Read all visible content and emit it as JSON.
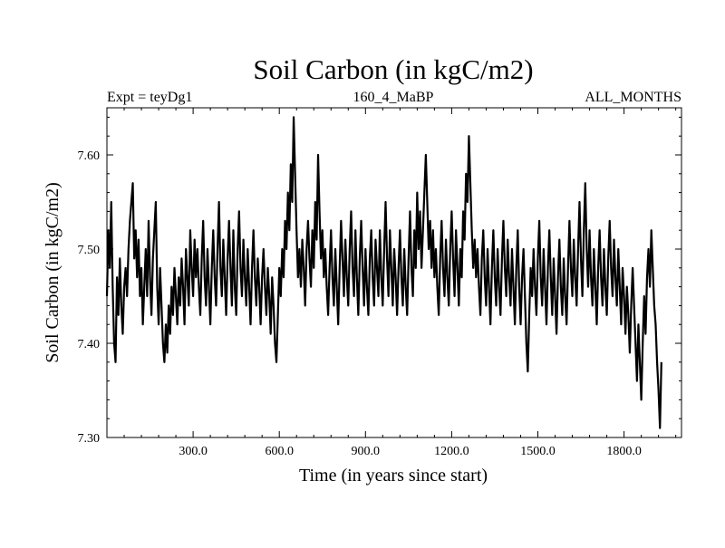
{
  "chart_data": {
    "type": "line",
    "title": "Soil Carbon (in kgC/m2)",
    "subtitle_left": "Expt = teyDg1",
    "subtitle_center": "160_4_MaBP",
    "subtitle_right": "ALL_MONTHS",
    "xlabel": "Time (in years since start)",
    "ylabel": "Soil Carbon (in kgC/m2)",
    "xlim": [
      0,
      2000
    ],
    "ylim": [
      7.3,
      7.65
    ],
    "x_ticks": [
      300,
      600,
      900,
      1200,
      1500,
      1800
    ],
    "x_tick_labels": [
      "300.0",
      "600.0",
      "900.0",
      "1200.0",
      "1500.0",
      "1800.0"
    ],
    "y_ticks": [
      7.3,
      7.4,
      7.5,
      7.6
    ],
    "y_tick_labels": [
      "7.30",
      "7.40",
      "7.50",
      "7.60"
    ],
    "series": [
      {
        "name": "Soil Carbon",
        "sampling": "one value every 5 years, 0-2000",
        "x_start": 0,
        "x_step": 5,
        "color": "#000000",
        "values": [
          7.45,
          7.52,
          7.48,
          7.55,
          7.46,
          7.4,
          7.38,
          7.47,
          7.43,
          7.49,
          7.44,
          7.41,
          7.46,
          7.48,
          7.45,
          7.5,
          7.53,
          7.55,
          7.57,
          7.49,
          7.52,
          7.47,
          7.51,
          7.45,
          7.48,
          7.42,
          7.46,
          7.5,
          7.45,
          7.53,
          7.47,
          7.43,
          7.49,
          7.52,
          7.55,
          7.46,
          7.42,
          7.48,
          7.44,
          7.4,
          7.38,
          7.42,
          7.39,
          7.44,
          7.41,
          7.46,
          7.43,
          7.48,
          7.45,
          7.42,
          7.47,
          7.44,
          7.49,
          7.46,
          7.42,
          7.5,
          7.47,
          7.44,
          7.52,
          7.48,
          7.45,
          7.51,
          7.47,
          7.5,
          7.46,
          7.43,
          7.49,
          7.53,
          7.47,
          7.44,
          7.5,
          7.46,
          7.42,
          7.48,
          7.52,
          7.47,
          7.44,
          7.5,
          7.55,
          7.48,
          7.45,
          7.51,
          7.47,
          7.43,
          7.49,
          7.53,
          7.48,
          7.44,
          7.52,
          7.46,
          7.43,
          7.5,
          7.54,
          7.48,
          7.45,
          7.51,
          7.47,
          7.44,
          7.5,
          7.46,
          7.42,
          7.48,
          7.52,
          7.47,
          7.44,
          7.49,
          7.46,
          7.42,
          7.47,
          7.5,
          7.46,
          7.43,
          7.48,
          7.45,
          7.41,
          7.47,
          7.44,
          7.4,
          7.38,
          7.43,
          7.48,
          7.45,
          7.5,
          7.47,
          7.53,
          7.5,
          7.56,
          7.52,
          7.59,
          7.55,
          7.64,
          7.58,
          7.52,
          7.47,
          7.5,
          7.46,
          7.51,
          7.48,
          7.44,
          7.5,
          7.53,
          7.49,
          7.46,
          7.52,
          7.48,
          7.55,
          7.51,
          7.6,
          7.54,
          7.49,
          7.52,
          7.47,
          7.5,
          7.46,
          7.43,
          7.48,
          7.52,
          7.47,
          7.44,
          7.5,
          7.46,
          7.42,
          7.48,
          7.53,
          7.49,
          7.45,
          7.51,
          7.47,
          7.44,
          7.5,
          7.54,
          7.48,
          7.45,
          7.52,
          7.47,
          7.43,
          7.49,
          7.53,
          7.48,
          7.44,
          7.5,
          7.46,
          7.43,
          7.49,
          7.52,
          7.47,
          7.44,
          7.51,
          7.48,
          7.45,
          7.52,
          7.47,
          7.44,
          7.5,
          7.55,
          7.49,
          7.45,
          7.52,
          7.48,
          7.44,
          7.5,
          7.47,
          7.43,
          7.48,
          7.52,
          7.47,
          7.44,
          7.5,
          7.46,
          7.43,
          7.49,
          7.54,
          7.48,
          7.45,
          7.52,
          7.48,
          7.56,
          7.5,
          7.54,
          7.48,
          7.52,
          7.56,
          7.6,
          7.55,
          7.5,
          7.53,
          7.48,
          7.52,
          7.47,
          7.5,
          7.46,
          7.43,
          7.49,
          7.53,
          7.48,
          7.45,
          7.51,
          7.47,
          7.44,
          7.5,
          7.54,
          7.49,
          7.45,
          7.52,
          7.48,
          7.44,
          7.5,
          7.47,
          7.54,
          7.51,
          7.58,
          7.55,
          7.62,
          7.57,
          7.52,
          7.48,
          7.51,
          7.47,
          7.5,
          7.46,
          7.43,
          7.49,
          7.52,
          7.47,
          7.44,
          7.5,
          7.46,
          7.42,
          7.48,
          7.52,
          7.47,
          7.44,
          7.5,
          7.46,
          7.43,
          7.49,
          7.53,
          7.48,
          7.45,
          7.51,
          7.47,
          7.44,
          7.5,
          7.46,
          7.42,
          7.48,
          7.52,
          7.46,
          7.42,
          7.47,
          7.5,
          7.45,
          7.4,
          7.37,
          7.43,
          7.48,
          7.45,
          7.5,
          7.46,
          7.43,
          7.49,
          7.53,
          7.47,
          7.44,
          7.5,
          7.46,
          7.42,
          7.48,
          7.52,
          7.47,
          7.43,
          7.49,
          7.45,
          7.41,
          7.47,
          7.51,
          7.46,
          7.43,
          7.49,
          7.45,
          7.42,
          7.48,
          7.53,
          7.48,
          7.45,
          7.51,
          7.47,
          7.44,
          7.5,
          7.55,
          7.49,
          7.45,
          7.52,
          7.57,
          7.5,
          7.46,
          7.52,
          7.47,
          7.44,
          7.5,
          7.46,
          7.42,
          7.48,
          7.52,
          7.47,
          7.44,
          7.5,
          7.46,
          7.43,
          7.49,
          7.53,
          7.48,
          7.45,
          7.51,
          7.47,
          7.44,
          7.5,
          7.46,
          7.42,
          7.48,
          7.45,
          7.41,
          7.46,
          7.43,
          7.39,
          7.44,
          7.48,
          7.44,
          7.4,
          7.36,
          7.42,
          7.38,
          7.34,
          7.4,
          7.45,
          7.41,
          7.47,
          7.5,
          7.46,
          7.52,
          7.48,
          7.44,
          7.42,
          7.38,
          7.35,
          7.31,
          7.38
        ]
      }
    ]
  }
}
